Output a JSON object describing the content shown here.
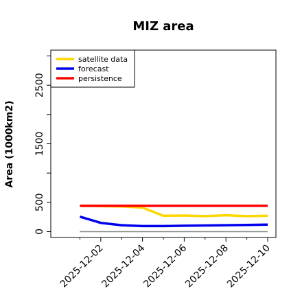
{
  "chart_data": {
    "type": "line",
    "title": "MIZ area",
    "xlabel": "",
    "ylabel": "Area (1000km2)",
    "x": [
      "2025-12-01",
      "2025-12-02",
      "2025-12-03",
      "2025-12-04",
      "2025-12-05",
      "2025-12-06",
      "2025-12-07",
      "2025-12-08",
      "2025-12-09",
      "2025-12-10"
    ],
    "xticks": [
      "2025-12-02",
      "2025-12-04",
      "2025-12-06",
      "2025-12-08",
      "2025-12-10"
    ],
    "xtick_highlight": "2025-12-02",
    "xlim": [
      "2025-11-30",
      "2025-12-10"
    ],
    "ylim": [
      -100,
      3100
    ],
    "yticks": [
      0,
      500,
      1500,
      2500
    ],
    "grid": false,
    "legend_position": "top-left",
    "series": [
      {
        "name": "satellite data",
        "color": "#FFD700",
        "values": [
          440,
          435,
          430,
          410,
          270,
          275,
          265,
          280,
          265,
          270
        ]
      },
      {
        "name": "forecast",
        "color": "#0000EE",
        "values": [
          255,
          150,
          110,
          95,
          95,
          100,
          105,
          110,
          115,
          120
        ]
      },
      {
        "name": "persistence",
        "color": "#FF0000",
        "values": [
          440,
          440,
          440,
          440,
          440,
          440,
          440,
          440,
          440,
          440
        ]
      }
    ],
    "reference_line": {
      "value": 0,
      "color": "#888888"
    },
    "colors": {
      "highlight_tick": "#228B22"
    }
  }
}
